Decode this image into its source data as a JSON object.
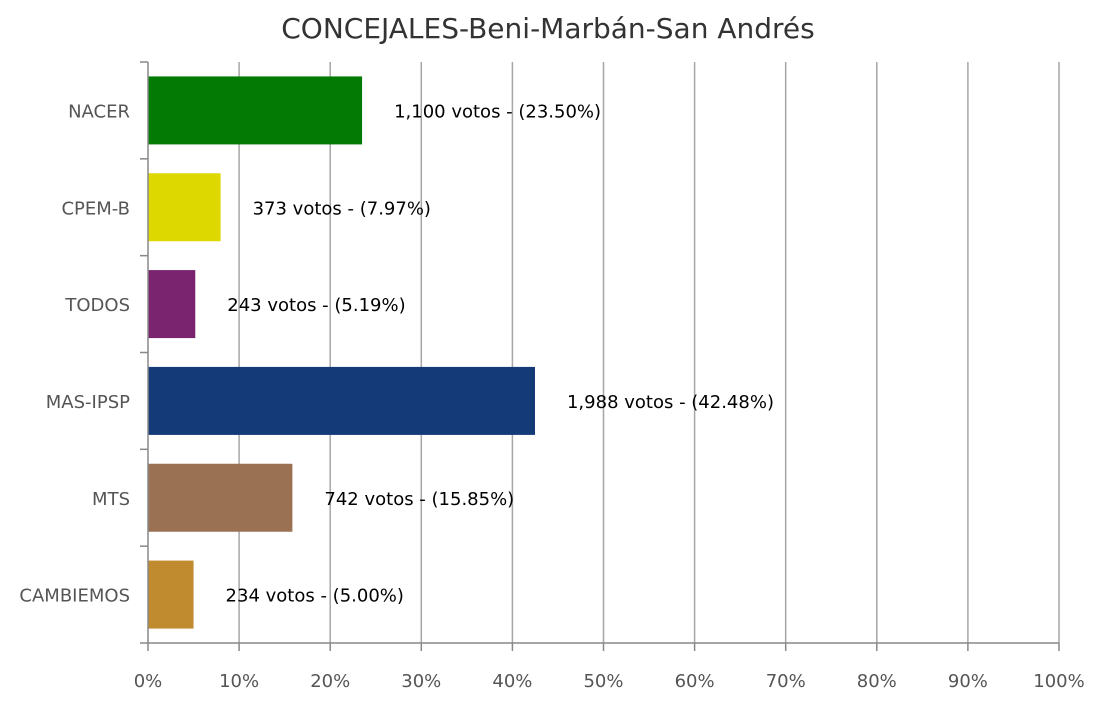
{
  "chart_data": {
    "type": "bar",
    "orientation": "horizontal",
    "title": "CONCEJALES-Beni-Marbán-San Andrés",
    "categories": [
      "NACER",
      "CPEM-B",
      "TODOS",
      "MAS-IPSP",
      "MTS",
      "CAMBIEMOS"
    ],
    "values": [
      23.5,
      7.97,
      5.19,
      42.48,
      15.85,
      5.0
    ],
    "votes": [
      1100,
      373,
      243,
      1988,
      742,
      234
    ],
    "data_labels": [
      "1,100 votos - (23.50%)",
      "373 votos - (7.97%)",
      "243 votos - (5.19%)",
      "1,988 votos - (42.48%)",
      "742 votos - (15.85%)",
      "234 votos - (5.00%)"
    ],
    "colors": [
      "#037a03",
      "#dcd800",
      "#7a2470",
      "#153a78",
      "#9a7152",
      "#c08a2e"
    ],
    "xlim": [
      0,
      100
    ],
    "xticks": [
      "0%",
      "10%",
      "20%",
      "30%",
      "40%",
      "50%",
      "60%",
      "70%",
      "80%",
      "90%",
      "100%"
    ],
    "grid": true,
    "legend": "none"
  }
}
